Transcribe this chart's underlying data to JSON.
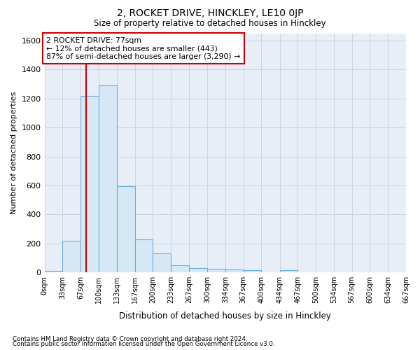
{
  "title": "2, ROCKET DRIVE, HINCKLEY, LE10 0JP",
  "subtitle": "Size of property relative to detached houses in Hinckley",
  "xlabel": "Distribution of detached houses by size in Hinckley",
  "ylabel": "Number of detached properties",
  "footnote1": "Contains HM Land Registry data © Crown copyright and database right 2024.",
  "footnote2": "Contains public sector information licensed under the Open Government Licence v3.0.",
  "annotation_line1": "2 ROCKET DRIVE: 77sqm",
  "annotation_line2": "← 12% of detached houses are smaller (443)",
  "annotation_line3": "87% of semi-detached houses are larger (3,290) →",
  "property_size": 77,
  "bar_edge_color": "#6baed6",
  "bar_face_color": "#d6e8f5",
  "vline_color": "#cc0000",
  "bg_color": "#ffffff",
  "plot_bg_color": "#e8eef8",
  "grid_color": "#c0c8d8",
  "bin_edges": [
    0,
    33,
    67,
    100,
    133,
    167,
    200,
    233,
    267,
    300,
    334,
    367,
    400,
    434,
    467,
    500,
    534,
    567,
    600,
    634,
    667
  ],
  "bar_heights": [
    10,
    220,
    1220,
    1290,
    595,
    230,
    130,
    50,
    28,
    25,
    20,
    15,
    0,
    15,
    0,
    0,
    0,
    0,
    0,
    0
  ],
  "ylim": [
    0,
    1650
  ],
  "yticks": [
    0,
    200,
    400,
    600,
    800,
    1000,
    1200,
    1400,
    1600
  ],
  "tick_labels": [
    "0sqm",
    "33sqm",
    "67sqm",
    "100sqm",
    "133sqm",
    "167sqm",
    "200sqm",
    "233sqm",
    "267sqm",
    "300sqm",
    "334sqm",
    "367sqm",
    "400sqm",
    "434sqm",
    "467sqm",
    "500sqm",
    "534sqm",
    "567sqm",
    "600sqm",
    "634sqm",
    "667sqm"
  ]
}
